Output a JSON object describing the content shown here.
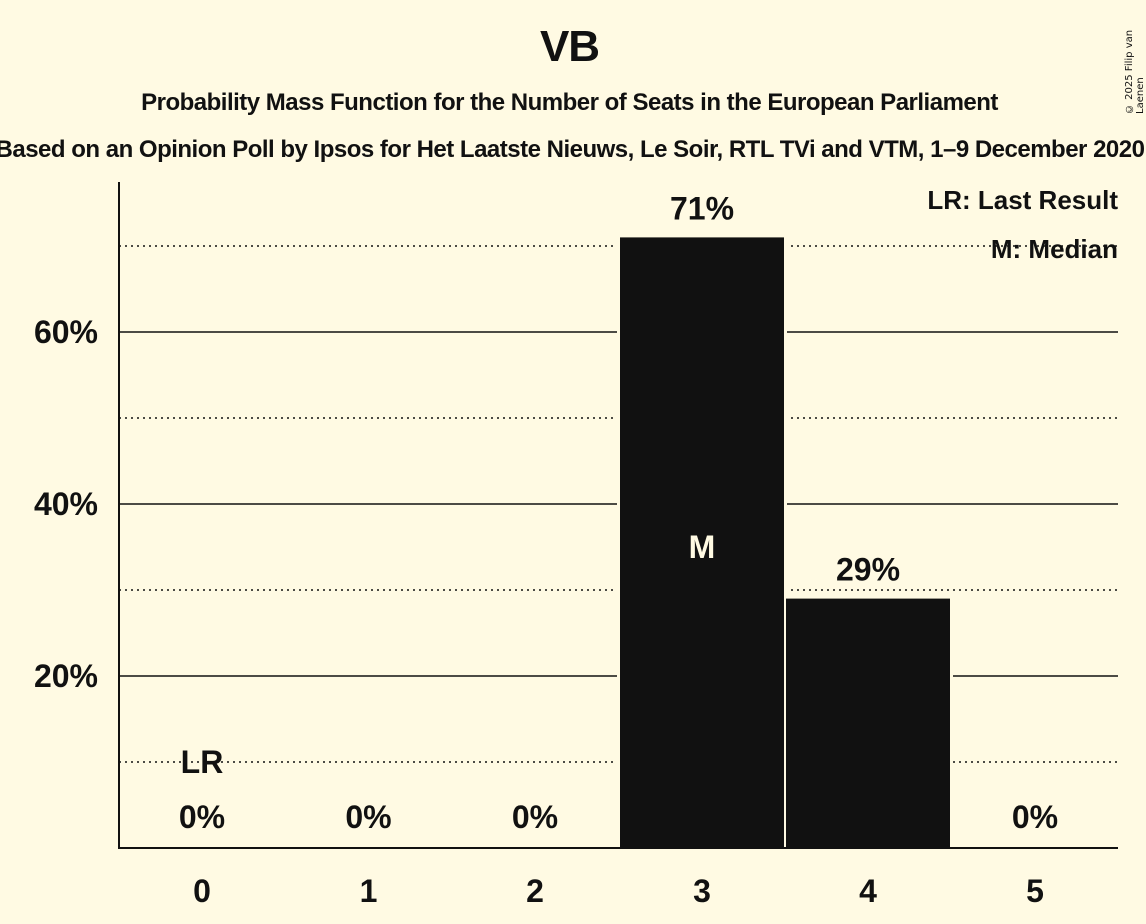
{
  "header": {
    "title": "VB",
    "subtitle": "Probability Mass Function for the Number of Seats in the European Parliament",
    "subsubtitle": "Based on an Opinion Poll by Ipsos for Het Laatste Nieuws, Le Soir, RTL TVi and VTM, 1–9 December 2020",
    "copyright": "© 2025 Filip van Laenen"
  },
  "legend": {
    "lr": "LR: Last Result",
    "median": "M: Median"
  },
  "colors": {
    "background": "#fffae3",
    "bar": "#111111",
    "text": "#111111",
    "median_label": "#fffae3"
  },
  "chart_data": {
    "type": "bar",
    "title": "VB",
    "subtitle": "Probability Mass Function for the Number of Seats in the European Parliament",
    "xlabel": "",
    "ylabel": "",
    "categories": [
      "0",
      "1",
      "2",
      "3",
      "4",
      "5"
    ],
    "values": [
      0,
      0,
      0,
      71,
      29,
      0
    ],
    "value_labels": [
      "0%",
      "0%",
      "0%",
      "71%",
      "29%",
      "0%"
    ],
    "ylim": [
      0,
      77
    ],
    "yticks": [
      20,
      40,
      60
    ],
    "ytick_labels": [
      "20%",
      "40%",
      "60%"
    ],
    "grid": {
      "major": [
        20,
        40,
        60
      ],
      "minor_dotted": [
        10,
        30,
        50,
        70
      ]
    },
    "annotations": [
      {
        "category": "0",
        "text": "LR",
        "meaning": "Last Result"
      },
      {
        "category": "3",
        "text": "M",
        "meaning": "Median"
      }
    ],
    "legend_position": "top-right"
  }
}
